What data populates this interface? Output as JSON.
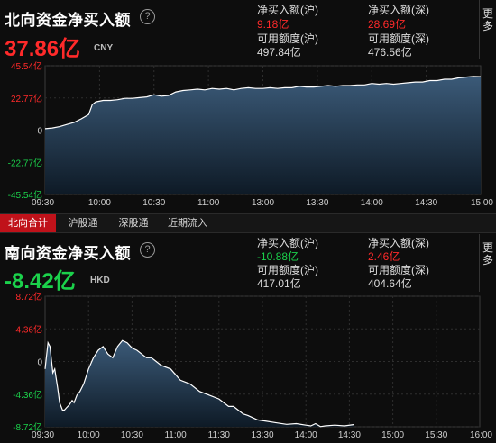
{
  "colors": {
    "up": "#ff2a2a",
    "down": "#1bd14b",
    "line": "#ffffff",
    "area_top": "#3b5a78",
    "area_bottom": "#0e1a26",
    "tab_active": "#c0121a",
    "grid": "#2e2e2e"
  },
  "north": {
    "title": "北向资金净买入额",
    "value": "37.86亿",
    "unit": "CNY",
    "sh_buy_label": "净买入额(沪)",
    "sh_buy_value": "9.18亿",
    "sz_buy_label": "净买入额(深)",
    "sz_buy_value": "28.69亿",
    "sh_quota_label": "可用额度(沪)",
    "sh_quota_value": "497.84亿",
    "sz_quota_label": "可用额度(深)",
    "sz_quota_value": "476.56亿",
    "more_label": "更多"
  },
  "south": {
    "title": "南向资金净买入额",
    "value": "-8.42亿",
    "unit": "HKD",
    "sh_buy_label": "净买入额(沪)",
    "sh_buy_value": "-10.88亿",
    "sz_buy_label": "净买入额(深)",
    "sz_buy_value": "2.46亿",
    "sh_quota_label": "可用额度(沪)",
    "sh_quota_value": "417.01亿",
    "sz_quota_label": "可用额度(深)",
    "sz_quota_value": "404.64亿",
    "more_label": "更多"
  },
  "tabs": [
    "北向合计",
    "沪股通",
    "深股通",
    "近期流入"
  ],
  "chart_data": [
    {
      "type": "area",
      "y_ticks": [
        "45.54亿",
        "22.77亿",
        "0",
        "-22.77亿",
        "-45.54亿"
      ],
      "x_ticks": [
        "09:30",
        "10:00",
        "10:30",
        "11:00",
        "13:00",
        "13:30",
        "14:00",
        "14:30",
        "15:00"
      ],
      "ylim": [
        -45.54,
        45.54
      ],
      "x": [
        0,
        4,
        8,
        12,
        16,
        20,
        24,
        26,
        28,
        32,
        36,
        40,
        44,
        48,
        52,
        56,
        60,
        64,
        68,
        72,
        76,
        80,
        84,
        88,
        92,
        96,
        100,
        104,
        108,
        112,
        116,
        120,
        124,
        128,
        132,
        136,
        140,
        144,
        148,
        152,
        156,
        160,
        164,
        168,
        172,
        176,
        180,
        184,
        188,
        192,
        196,
        200,
        204,
        208,
        212,
        216,
        220,
        224,
        228,
        232,
        236,
        240
      ],
      "values": [
        1,
        1.5,
        2.5,
        4,
        5.5,
        8,
        11,
        18,
        20,
        21,
        21,
        21.5,
        22.5,
        22.5,
        23,
        23.5,
        25,
        24,
        24.5,
        27,
        28,
        28.5,
        29,
        28.5,
        29.5,
        29,
        29.5,
        28.5,
        29.5,
        30,
        29.5,
        29.5,
        30,
        29.5,
        30,
        30,
        31,
        30.5,
        30.5,
        31,
        31.5,
        31,
        31.5,
        31.5,
        32,
        32,
        33,
        32.5,
        33,
        32.5,
        33,
        33.5,
        34,
        34,
        35,
        35,
        36,
        36,
        37,
        37.5,
        38,
        37.86
      ]
    },
    {
      "type": "area",
      "y_ticks": [
        "8.72亿",
        "4.36亿",
        "0",
        "-4.36亿",
        "-8.72亿"
      ],
      "x_ticks": [
        "09:30",
        "10:00",
        "10:30",
        "11:00",
        "11:30",
        "13:30",
        "14:00",
        "14:30",
        "15:00",
        "15:30",
        "16:00"
      ],
      "ylim": [
        -8.72,
        8.72
      ],
      "x": [
        0,
        3,
        5,
        8,
        10,
        13,
        15,
        18,
        20,
        22,
        25,
        28,
        30,
        33,
        36,
        40,
        45,
        50,
        55,
        60,
        65,
        70,
        75,
        80,
        85,
        90,
        95,
        100,
        105,
        110,
        115,
        120,
        130,
        140,
        150,
        160,
        170,
        180,
        190,
        195,
        200,
        205,
        210,
        215,
        220,
        230,
        240,
        250,
        260,
        270,
        275,
        280,
        285,
        290,
        300,
        310,
        320
      ],
      "values": [
        -1,
        2.5,
        2,
        -1.5,
        -1,
        -3.5,
        -5.5,
        -6.5,
        -6.5,
        -6.2,
        -5.8,
        -5.2,
        -5.5,
        -4.5,
        -4,
        -3,
        -1,
        0.5,
        1.5,
        2,
        1,
        0.5,
        2,
        2.8,
        2.5,
        1.8,
        1.5,
        1,
        0.5,
        0.5,
        0,
        -0.5,
        -1,
        -2.5,
        -3,
        -4,
        -4.5,
        -5,
        -6,
        -6,
        -6.5,
        -7,
        -7.2,
        -7.5,
        -7.8,
        -8,
        -8.2,
        -8.4,
        -8.3,
        -8.5,
        -8.6,
        -8.3,
        -8.7,
        -8.6,
        -8.5,
        -8.6,
        -8.42
      ]
    }
  ]
}
